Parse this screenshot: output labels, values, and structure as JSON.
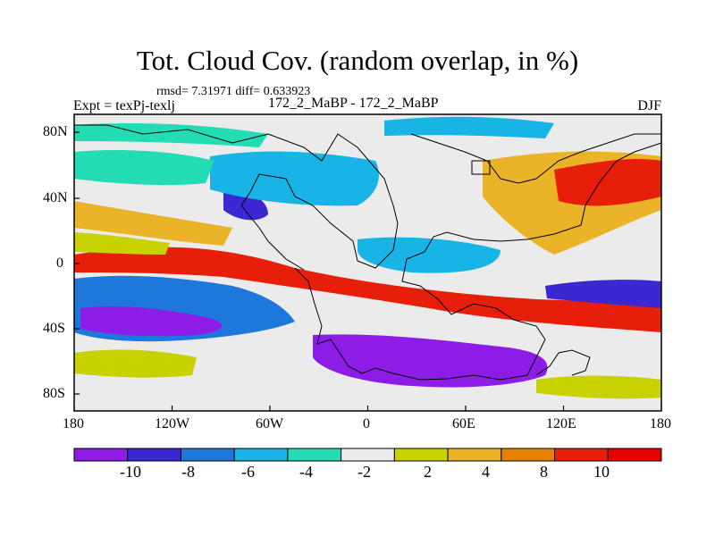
{
  "figure": {
    "title": "Tot. Cloud Cov. (random overlap, in %)",
    "stats": "rmsd= 7.31971 diff= 0.633923",
    "experiment": "Expt = texPj-texlj",
    "comparison": "172_2_MaBP - 172_2_MaBP",
    "season": "DJF"
  },
  "axes": {
    "lon_labels": [
      "180",
      "120W",
      "60W",
      "0",
      "60E",
      "120E",
      "180"
    ],
    "lat_labels": [
      "80N",
      "40N",
      "0",
      "40S",
      "80S"
    ]
  },
  "colorbar": {
    "labels": [
      "-10",
      "-8",
      "-6",
      "-4",
      "-2",
      "2",
      "4",
      "8",
      "10"
    ],
    "colors": [
      "#8c1ce6",
      "#3c28d2",
      "#1e78dc",
      "#19b4e6",
      "#23dcb4",
      "#ebebeb",
      "#c8d200",
      "#ebb428",
      "#e68200",
      "#e61e0a",
      "#e60000"
    ]
  }
}
